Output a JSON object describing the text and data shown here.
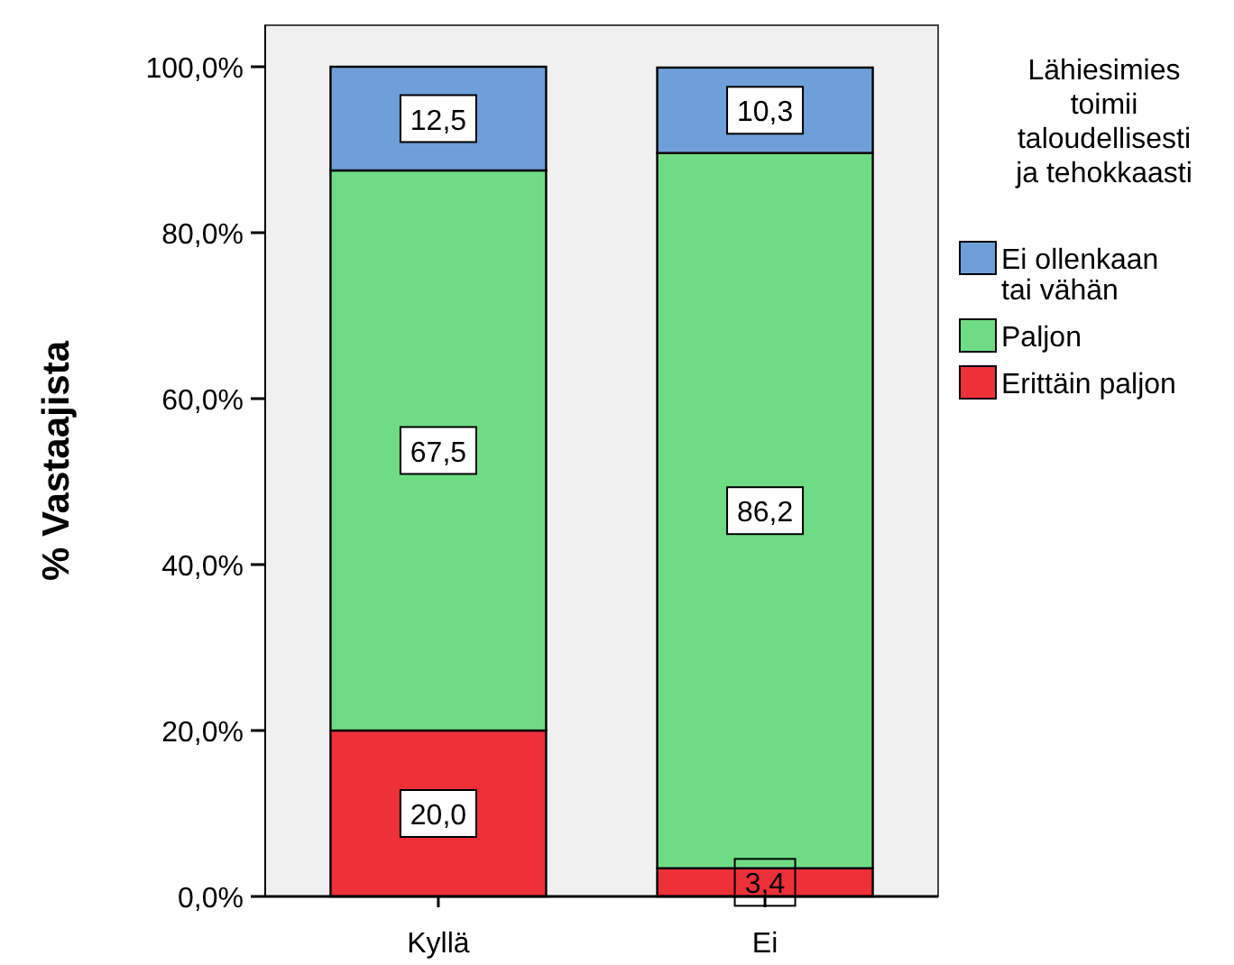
{
  "chart_data": {
    "type": "bar",
    "stacked": true,
    "ylabel": "% Vastaajista",
    "legend_title": "Lähiesimies toimii taloudellisesti ja tehokkaasti",
    "legend": "right",
    "categories": [
      "Kyllä",
      "Ei"
    ],
    "ylim": [
      0,
      105
    ],
    "yticks": [
      {
        "value": 0,
        "label": "0,0%"
      },
      {
        "value": 20,
        "label": "20,0%"
      },
      {
        "value": 40,
        "label": "40,0%"
      },
      {
        "value": 60,
        "label": "60,0%"
      },
      {
        "value": 80,
        "label": "80,0%"
      },
      {
        "value": 100,
        "label": "100,0%"
      }
    ],
    "grid": false,
    "series": [
      {
        "name": "Erittäin paljon",
        "color": "#ee3038",
        "values": [
          20.0,
          3.4
        ],
        "value_labels": [
          "20,0",
          "3,4"
        ]
      },
      {
        "name": "Paljon",
        "color": "#6fdc85",
        "values": [
          67.5,
          86.2
        ],
        "value_labels": [
          "67,5",
          "86,2"
        ]
      },
      {
        "name": "Ei ollenkaan tai vähän",
        "color": "#6f9fd8",
        "values": [
          12.5,
          10.3
        ],
        "value_labels": [
          "12,5",
          "10,3"
        ]
      }
    ]
  }
}
